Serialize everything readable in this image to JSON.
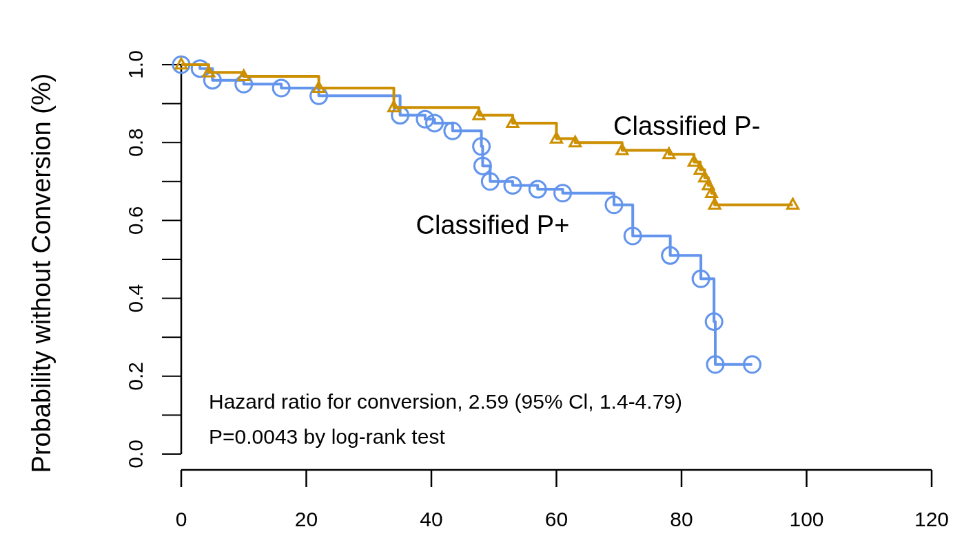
{
  "chart_data": {
    "type": "step",
    "ylabel": "Probability without Conversion (%)",
    "xlim": [
      0,
      120
    ],
    "xticks": [
      0,
      20,
      40,
      60,
      80,
      100,
      120
    ],
    "ylim": [
      0,
      1
    ],
    "yticks": [
      {
        "value": 0,
        "label": "0.0"
      },
      {
        "value": 0.2,
        "label": "0.2"
      },
      {
        "value": 0.4,
        "label": "0.4"
      },
      {
        "value": 0.6,
        "label": "0.6"
      },
      {
        "value": 0.8,
        "label": "0.8"
      },
      {
        "value": 1,
        "label": "1.0"
      }
    ],
    "grid": false,
    "series": [
      {
        "name": "Classified P+",
        "color": "#6495ed",
        "marker": "circle",
        "x": [
          0,
          3,
          5,
          10,
          16,
          22,
          35,
          39,
          40.5,
          43.4,
          48,
          48.2,
          49.4,
          53,
          57,
          61,
          69.2,
          72.2,
          78.2,
          83.1,
          85.2,
          85.4,
          91.3
        ],
        "values": [
          1.0,
          0.99,
          0.96,
          0.95,
          0.94,
          0.92,
          0.87,
          0.86,
          0.85,
          0.83,
          0.79,
          0.74,
          0.7,
          0.69,
          0.68,
          0.67,
          0.64,
          0.56,
          0.51,
          0.45,
          0.34,
          0.23,
          0.23
        ]
      },
      {
        "name": "Classified P-",
        "color": "#cc8f00",
        "marker": "triangle",
        "x": [
          0,
          4.4,
          10,
          22,
          34,
          47.6,
          53,
          60,
          63,
          70.5,
          78,
          82,
          83,
          83.7,
          84.3,
          84.8,
          85.3,
          97.8
        ],
        "values": [
          1.0,
          0.98,
          0.97,
          0.94,
          0.89,
          0.87,
          0.85,
          0.81,
          0.8,
          0.78,
          0.77,
          0.75,
          0.73,
          0.71,
          0.69,
          0.67,
          0.64,
          0.64
        ]
      }
    ],
    "annotations": [
      "Hazard ratio for conversion, 2.59 (95% Cl, 1.4-4.79)",
      "P=0.0043 by log-rank test"
    ]
  }
}
